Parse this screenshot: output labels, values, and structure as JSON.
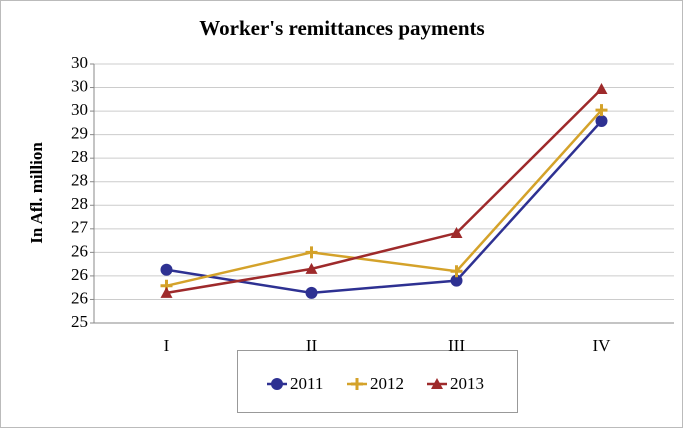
{
  "chart_data": {
    "type": "line",
    "title": "Worker's remittances payments",
    "y_label": "In Afl. million",
    "categories": [
      "I",
      "II",
      "III",
      "IV"
    ],
    "series": [
      {
        "name": "2011",
        "color": "#2e3192",
        "marker": "circle",
        "values": [
          26.13,
          25.64,
          25.9,
          29.29
        ]
      },
      {
        "name": "2012",
        "color": "#d4a22a",
        "marker": "plus",
        "values": [
          25.79,
          26.5,
          26.1,
          29.52
        ]
      },
      {
        "name": "2013",
        "color": "#9e2a2b",
        "marker": "triangle",
        "values": [
          25.64,
          26.15,
          26.91,
          29.97
        ]
      }
    ],
    "ylim": [
      25,
      30.5
    ],
    "yticks": [
      25,
      {
        "value": 25.5,
        "label": "26"
      },
      26,
      {
        "value": 26.5,
        "label": "26"
      },
      27,
      {
        "value": 27.5,
        "label": "28"
      },
      28,
      {
        "value": 28.5,
        "label": "28"
      },
      29,
      {
        "value": 29.5,
        "label": "30"
      },
      30,
      {
        "value": 30.5,
        "label": "30"
      }
    ],
    "grid": true,
    "legend": "bottom"
  }
}
